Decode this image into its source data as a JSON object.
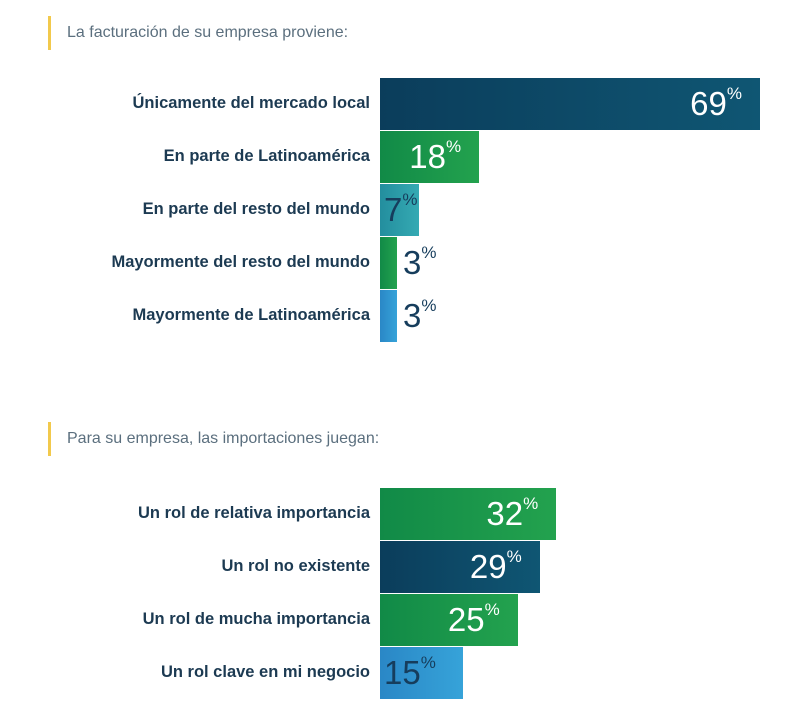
{
  "colors": {
    "navy": "#0f4c6b",
    "green": "#17964a",
    "teal": "#2aa3ad",
    "blue": "#2f96cf",
    "accent": "#f2c94c"
  },
  "chart_data": [
    {
      "type": "bar",
      "orientation": "horizontal",
      "title": "La facturación de su empresa proviene:",
      "unit": "%",
      "categories": [
        "Únicamente del mercado local",
        "En parte de Latinoamérica",
        "En parte del resto del mundo",
        "Mayormente del resto del mundo",
        "Mayormente de Latinoamérica"
      ],
      "values": [
        69,
        18,
        7,
        3,
        3
      ],
      "bar_colors": [
        "navy",
        "green",
        "teal",
        "green",
        "blue"
      ]
    },
    {
      "type": "bar",
      "orientation": "horizontal",
      "title": "Para su empresa, las importaciones juegan:",
      "unit": "%",
      "categories": [
        "Un rol de relativa importancia",
        "Un rol no existente",
        "Un rol de mucha importancia",
        "Un rol clave en mi negocio"
      ],
      "values": [
        32,
        29,
        25,
        15
      ],
      "bar_colors": [
        "green",
        "navy",
        "green",
        "blue"
      ]
    }
  ]
}
